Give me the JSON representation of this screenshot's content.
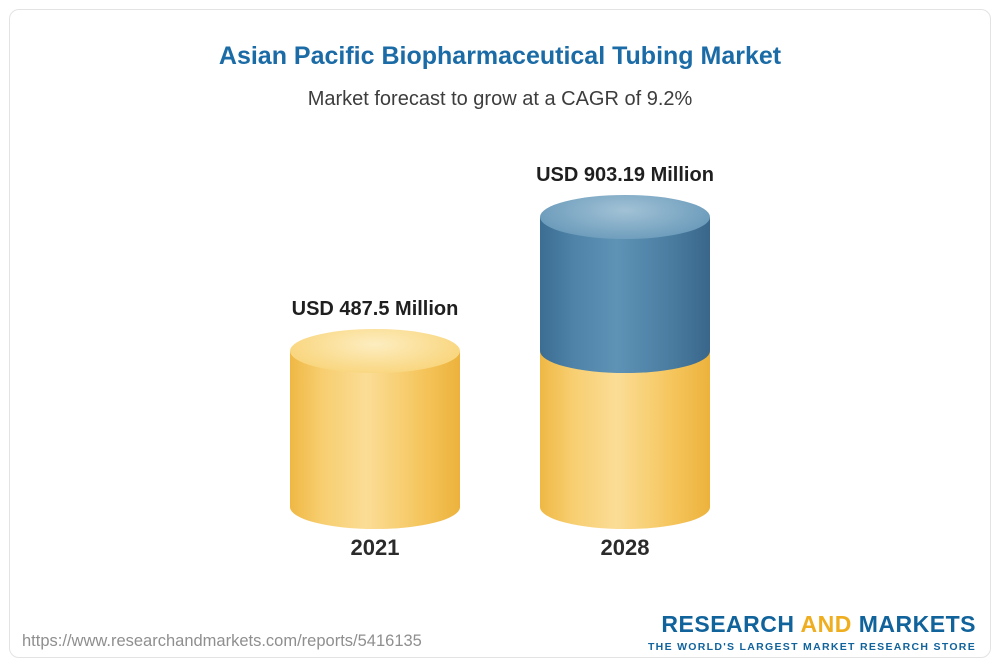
{
  "header": {
    "title": "Asian Pacific Biopharmaceutical Tubing Market",
    "subtitle": "Market forecast to grow at a CAGR of 9.2%"
  },
  "chart_data": {
    "type": "bar",
    "style": "3d-cylinder",
    "title": "Asian Pacific Biopharmaceutical Tubing Market",
    "subtitle": "Market forecast to grow at a CAGR of 9.2%",
    "unit": "USD Million",
    "categories": [
      "2021",
      "2028"
    ],
    "values": [
      487.5,
      903.19
    ],
    "value_labels": [
      "USD 487.5 Million",
      "USD 903.19 Million"
    ],
    "cagr_percent": 9.2,
    "ylim": [
      0,
      950
    ],
    "grid": false,
    "legend": false,
    "colors": {
      "base_segment": "#f7c85f",
      "growth_segment": "#4f83a8",
      "title_text": "#1b6ba6"
    },
    "notes_layout": "2028 cylinder is stacked: lower yellow segment equals the 2021 value, upper blue segment shows the growth to 903.19"
  },
  "footer": {
    "url": "https://www.researchandmarkets.com/reports/5416135",
    "logo": {
      "word1": "RESEARCH",
      "word2": "AND",
      "word3": "MARKETS",
      "tagline": "THE WORLD'S LARGEST MARKET RESEARCH STORE",
      "blue": "#11639c",
      "gold": "#efae20"
    }
  }
}
